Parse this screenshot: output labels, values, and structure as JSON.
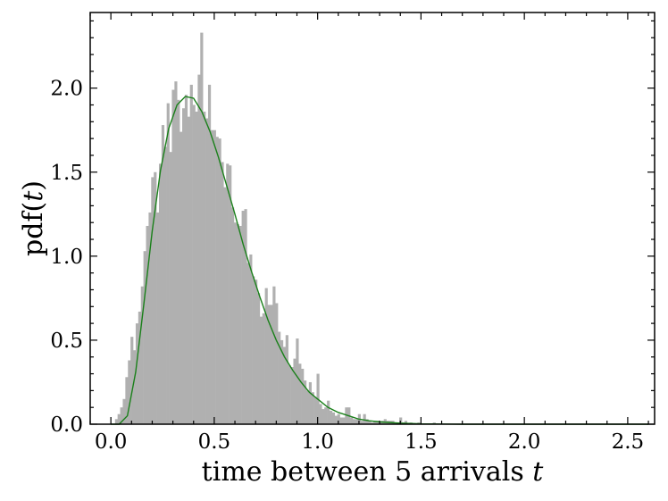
{
  "chart_data": {
    "type": "bar",
    "xlabel_text": "time between 5 arrivals ",
    "xlabel_var": "t",
    "ylabel_text": "pdf(",
    "ylabel_var": "t",
    "ylabel_close": ")",
    "xlim": [
      -0.1,
      2.63
    ],
    "ylim": [
      0,
      2.45
    ],
    "xticks": [
      0.0,
      0.5,
      1.0,
      1.5,
      2.0,
      2.5
    ],
    "xtick_labels": [
      "0.0",
      "0.5",
      "1.0",
      "1.5",
      "2.0",
      "2.5"
    ],
    "yticks": [
      0.0,
      0.5,
      1.0,
      1.5,
      2.0
    ],
    "ytick_labels": [
      "0.0",
      "0.5",
      "1.0",
      "1.5",
      "2.0"
    ],
    "grid": false,
    "histogram": {
      "name": "histogram",
      "color": "#b0b0b0",
      "bin_width": 0.0125,
      "x_start": 0.02,
      "values": [
        0.03,
        0.06,
        0.1,
        0.15,
        0.28,
        0.38,
        0.52,
        0.44,
        0.6,
        0.67,
        0.82,
        1.03,
        1.18,
        1.26,
        1.47,
        1.5,
        1.26,
        1.55,
        1.78,
        1.65,
        1.91,
        1.62,
        1.99,
        2.04,
        1.93,
        1.74,
        1.88,
        1.96,
        1.83,
        2.02,
        1.9,
        1.86,
        2.08,
        2.33,
        1.86,
        1.82,
        2.02,
        1.75,
        1.75,
        1.71,
        1.7,
        1.56,
        1.41,
        1.55,
        1.54,
        1.29,
        1.2,
        1.19,
        1.18,
        1.27,
        1.28,
        0.96,
        1.01,
        0.88,
        0.86,
        0.78,
        0.64,
        0.66,
        0.81,
        0.71,
        0.71,
        0.82,
        0.72,
        0.55,
        0.5,
        0.46,
        0.53,
        0.35,
        0.34,
        0.39,
        0.51,
        0.36,
        0.33,
        0.26,
        0.2,
        0.25,
        0.19,
        0.16,
        0.3,
        0.12,
        0.09,
        0.1,
        0.14,
        0.08,
        0.07,
        0.05,
        0.06,
        0.04,
        0.04,
        0.1,
        0.1,
        0.04,
        0.03,
        0.03,
        0.06,
        0.02,
        0.06,
        0.03,
        0.02,
        0.01,
        0.02,
        0.02,
        0.01,
        0.02,
        0.03,
        0.02,
        0.02,
        0.02,
        0.01,
        0.01,
        0.04,
        0.01,
        0.02,
        0.0,
        0.01,
        0.0,
        0.0,
        0.01,
        0.0,
        0.0,
        0.0,
        0.0,
        0.0,
        0.01,
        0.0
      ]
    },
    "fit_curve": {
      "name": "fit",
      "type": "line",
      "color": "#1a801a",
      "x": [
        0.0,
        0.04,
        0.08,
        0.12,
        0.16,
        0.2,
        0.24,
        0.28,
        0.32,
        0.36,
        0.4,
        0.44,
        0.48,
        0.52,
        0.56,
        0.6,
        0.64,
        0.68,
        0.72,
        0.76,
        0.8,
        0.84,
        0.88,
        0.92,
        0.96,
        1.0,
        1.05,
        1.1,
        1.15,
        1.2,
        1.25,
        1.3,
        1.4,
        1.5,
        1.6,
        1.7,
        1.8,
        2.0,
        2.2,
        2.4,
        2.6
      ],
      "y": [
        0.0,
        0.0,
        0.05,
        0.31,
        0.72,
        1.15,
        1.51,
        1.76,
        1.9,
        1.95,
        1.94,
        1.86,
        1.74,
        1.59,
        1.42,
        1.25,
        1.07,
        0.91,
        0.76,
        0.62,
        0.5,
        0.4,
        0.32,
        0.25,
        0.19,
        0.15,
        0.1,
        0.07,
        0.05,
        0.03,
        0.02,
        0.014,
        0.006,
        0.002,
        0.001,
        0.0,
        0.0,
        0.0,
        0.0,
        0.0,
        0.0
      ]
    }
  }
}
